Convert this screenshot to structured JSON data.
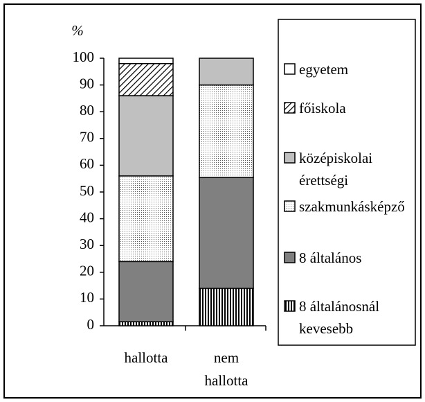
{
  "chart_data": {
    "type": "stacked_bar",
    "y_unit_label": "%",
    "categories": [
      "hallotta",
      "nem hallotta"
    ],
    "ylim": [
      0,
      100
    ],
    "yticks": [
      0,
      10,
      20,
      30,
      40,
      50,
      60,
      70,
      80,
      90,
      100
    ],
    "series": [
      {
        "name": "egyetem",
        "color": "#ffffff",
        "pattern": "none",
        "values": [
          2,
          0
        ]
      },
      {
        "name": "főiskola",
        "color": "#ffffff",
        "pattern": "diagonal",
        "values": [
          12,
          0
        ]
      },
      {
        "name": "középiskolai érettségi",
        "color": "#c0c0c0",
        "pattern": "none",
        "values": [
          30,
          10
        ]
      },
      {
        "name": "szakmunkásképző",
        "color": "#ffffff",
        "pattern": "dots",
        "values": [
          32,
          34.5
        ]
      },
      {
        "name": "8 általános",
        "color": "#808080",
        "pattern": "none",
        "values": [
          22.5,
          41.5
        ]
      },
      {
        "name": "8 általánosnál kevesebb",
        "color": "#ffffff",
        "pattern": "vertical",
        "values": [
          1.5,
          14
        ]
      }
    ]
  }
}
